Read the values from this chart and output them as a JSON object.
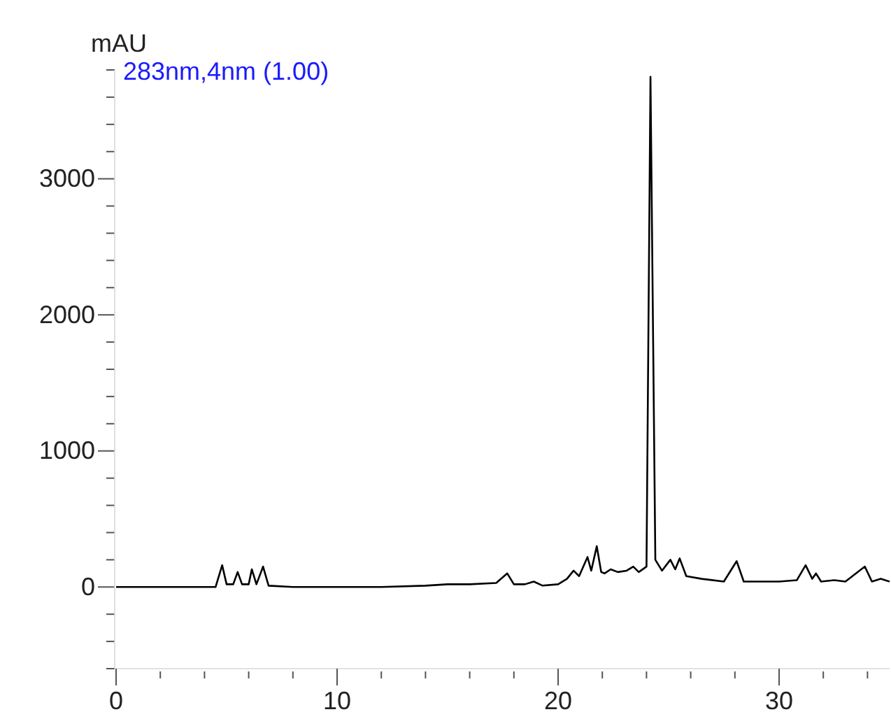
{
  "chart_data": {
    "type": "line",
    "ylabel": "mAU",
    "annotations": [
      "283nm,4nm (1.00)"
    ],
    "xlim": [
      0,
      35
    ],
    "ylim": [
      -600,
      3800
    ],
    "xticks": [
      0,
      {
        "value": 2,
        "label": null
      },
      {
        "value": 4,
        "label": null
      },
      {
        "value": 6,
        "label": null
      },
      {
        "value": 8,
        "label": null
      },
      10,
      {
        "value": 12,
        "label": null
      },
      {
        "value": 14,
        "label": null
      },
      {
        "value": 16,
        "label": null
      },
      {
        "value": 18,
        "label": null
      },
      20,
      {
        "value": 22,
        "label": null
      },
      {
        "value": 24,
        "label": null
      },
      {
        "value": 26,
        "label": null
      },
      {
        "value": 28,
        "label": null
      },
      30,
      {
        "value": 32,
        "label": null
      },
      {
        "value": 34,
        "label": null
      }
    ],
    "yticks": [
      {
        "value": -600,
        "label": null
      },
      {
        "value": -400,
        "label": null
      },
      {
        "value": -200,
        "label": null
      },
      0,
      {
        "value": 200,
        "label": null
      },
      {
        "value": 400,
        "label": null
      },
      {
        "value": 600,
        "label": null
      },
      {
        "value": 800,
        "label": null
      },
      1000,
      {
        "value": 1200,
        "label": null
      },
      {
        "value": 1400,
        "label": null
      },
      {
        "value": 1600,
        "label": null
      },
      {
        "value": 1800,
        "label": null
      },
      2000,
      {
        "value": 2200,
        "label": null
      },
      {
        "value": 2400,
        "label": null
      },
      {
        "value": 2600,
        "label": null
      },
      {
        "value": 2800,
        "label": null
      },
      3000,
      {
        "value": 3200,
        "label": null
      },
      {
        "value": 3400,
        "label": null
      },
      {
        "value": 3600,
        "label": null
      },
      {
        "value": 3800,
        "label": null
      }
    ],
    "marker": "none",
    "line_style": "solid",
    "grid": false,
    "series": [
      {
        "color": "#000000",
        "x": [
          0,
          4.5,
          4.8,
          5.0,
          5.3,
          5.5,
          5.7,
          6.0,
          6.14,
          6.35,
          6.65,
          6.9,
          8,
          12,
          14,
          15,
          16,
          17.2,
          17.7,
          18.0,
          18.5,
          18.9,
          19.3,
          20,
          20.4,
          20.7,
          20.95,
          21.33,
          21.5,
          21.75,
          21.95,
          22.1,
          22.38,
          22.7,
          23.1,
          23.4,
          23.65,
          24.0,
          24.18,
          24.4,
          24.7,
          25.08,
          25.3,
          25.5,
          25.8,
          26.5,
          27.5,
          28.08,
          28.4,
          29,
          30,
          30.8,
          31.2,
          31.5,
          31.67,
          31.9,
          32.5,
          33,
          33.88,
          34.2,
          34.6,
          35
        ],
        "values": [
          0,
          0,
          160,
          20,
          20,
          110,
          20,
          20,
          130,
          20,
          150,
          10,
          0,
          0,
          10,
          20,
          20,
          30,
          100,
          20,
          20,
          40,
          10,
          20,
          60,
          120,
          80,
          220,
          120,
          300,
          110,
          100,
          130,
          110,
          120,
          150,
          110,
          150,
          3750,
          200,
          120,
          200,
          130,
          210,
          80,
          60,
          40,
          190,
          40,
          40,
          40,
          50,
          160,
          60,
          100,
          40,
          50,
          40,
          150,
          40,
          60,
          40
        ]
      }
    ]
  }
}
